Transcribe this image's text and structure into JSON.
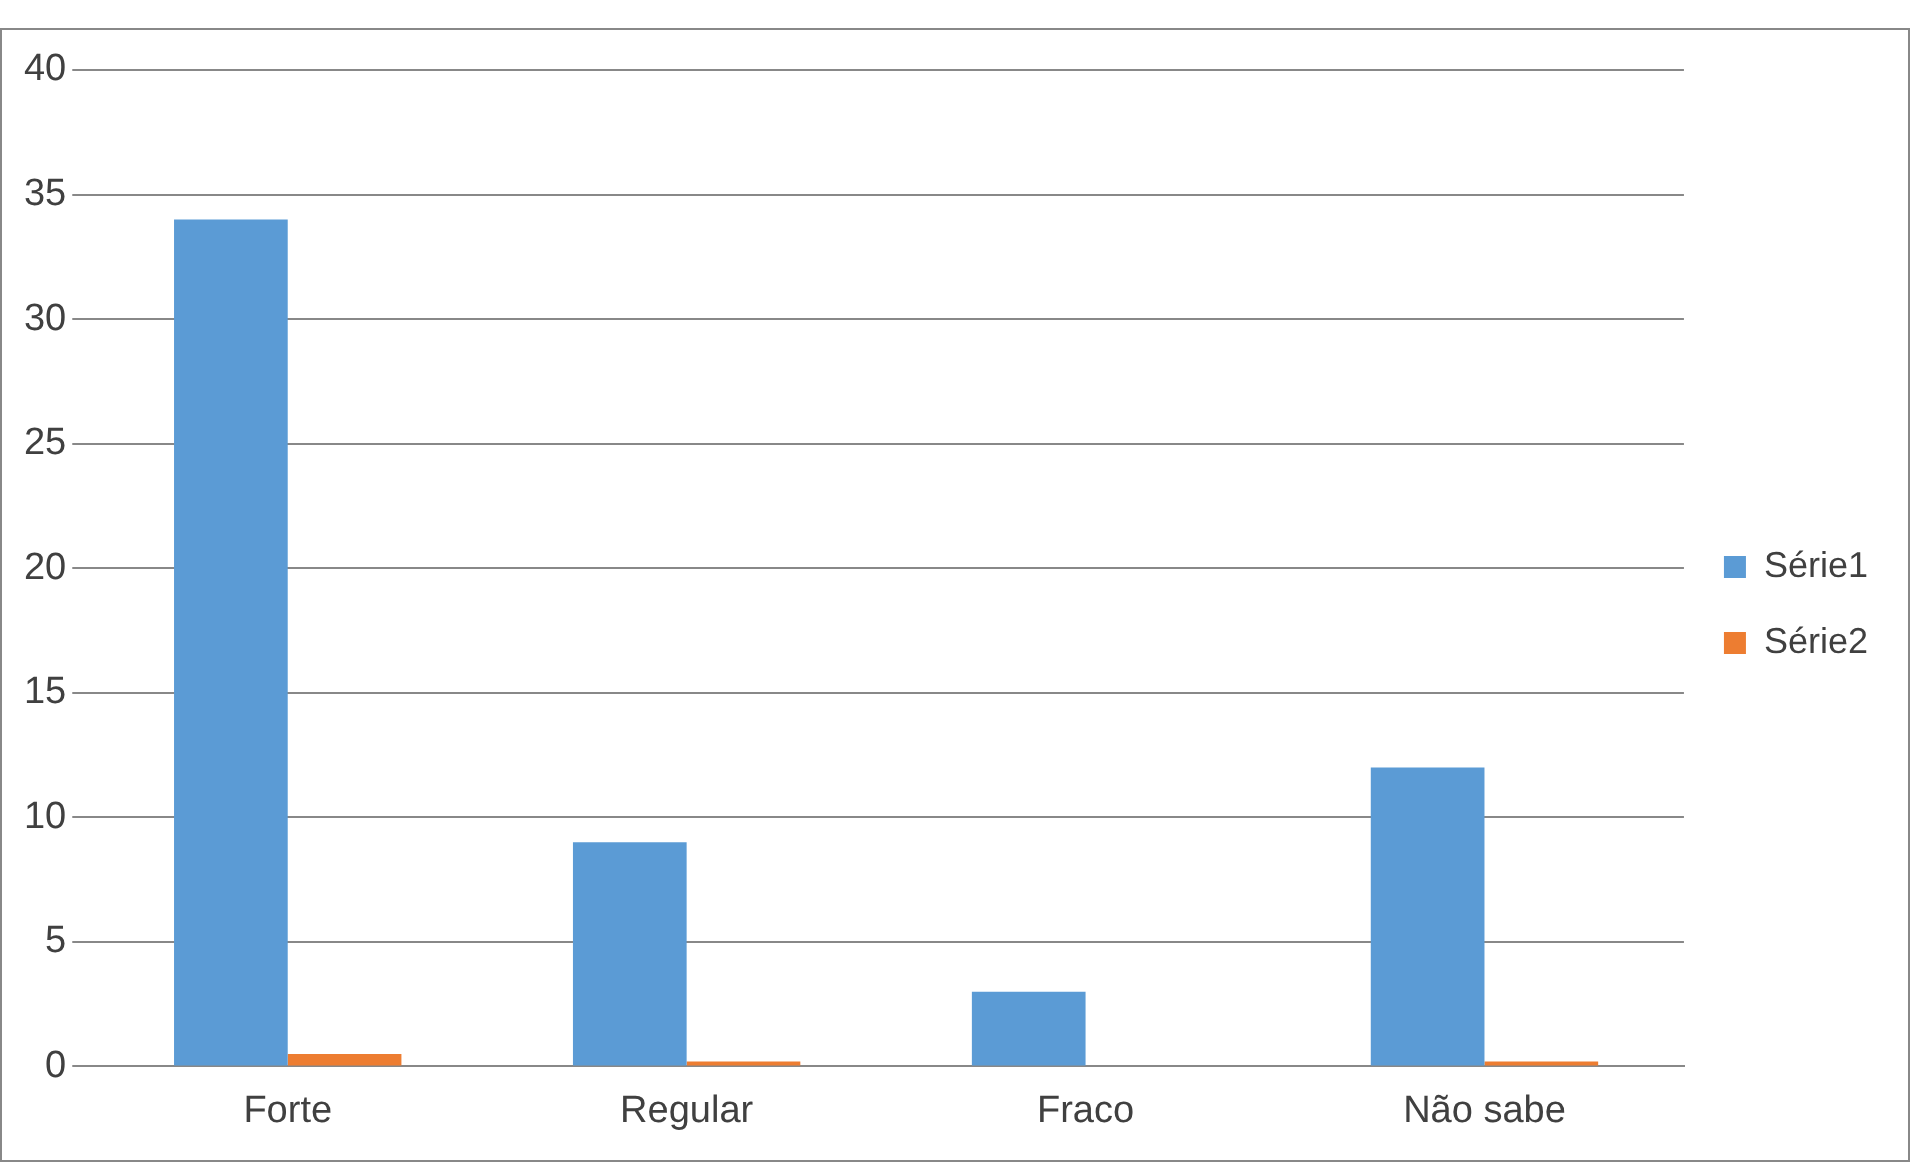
{
  "chart_data": {
    "type": "bar",
    "categories": [
      "Forte",
      "Regular",
      "Fraco",
      "Não sabe"
    ],
    "series": [
      {
        "name": "Série1",
        "color": "#5b9bd5",
        "values": [
          34,
          9,
          3,
          12
        ]
      },
      {
        "name": "Série2",
        "color": "#ed7d31",
        "values": [
          0.5,
          0.2,
          0,
          0.2
        ]
      }
    ],
    "ylim": [
      0,
      40
    ],
    "yticks": [
      0,
      5,
      10,
      15,
      20,
      25,
      30,
      35,
      40
    ],
    "grid": "y",
    "legend": "right"
  }
}
